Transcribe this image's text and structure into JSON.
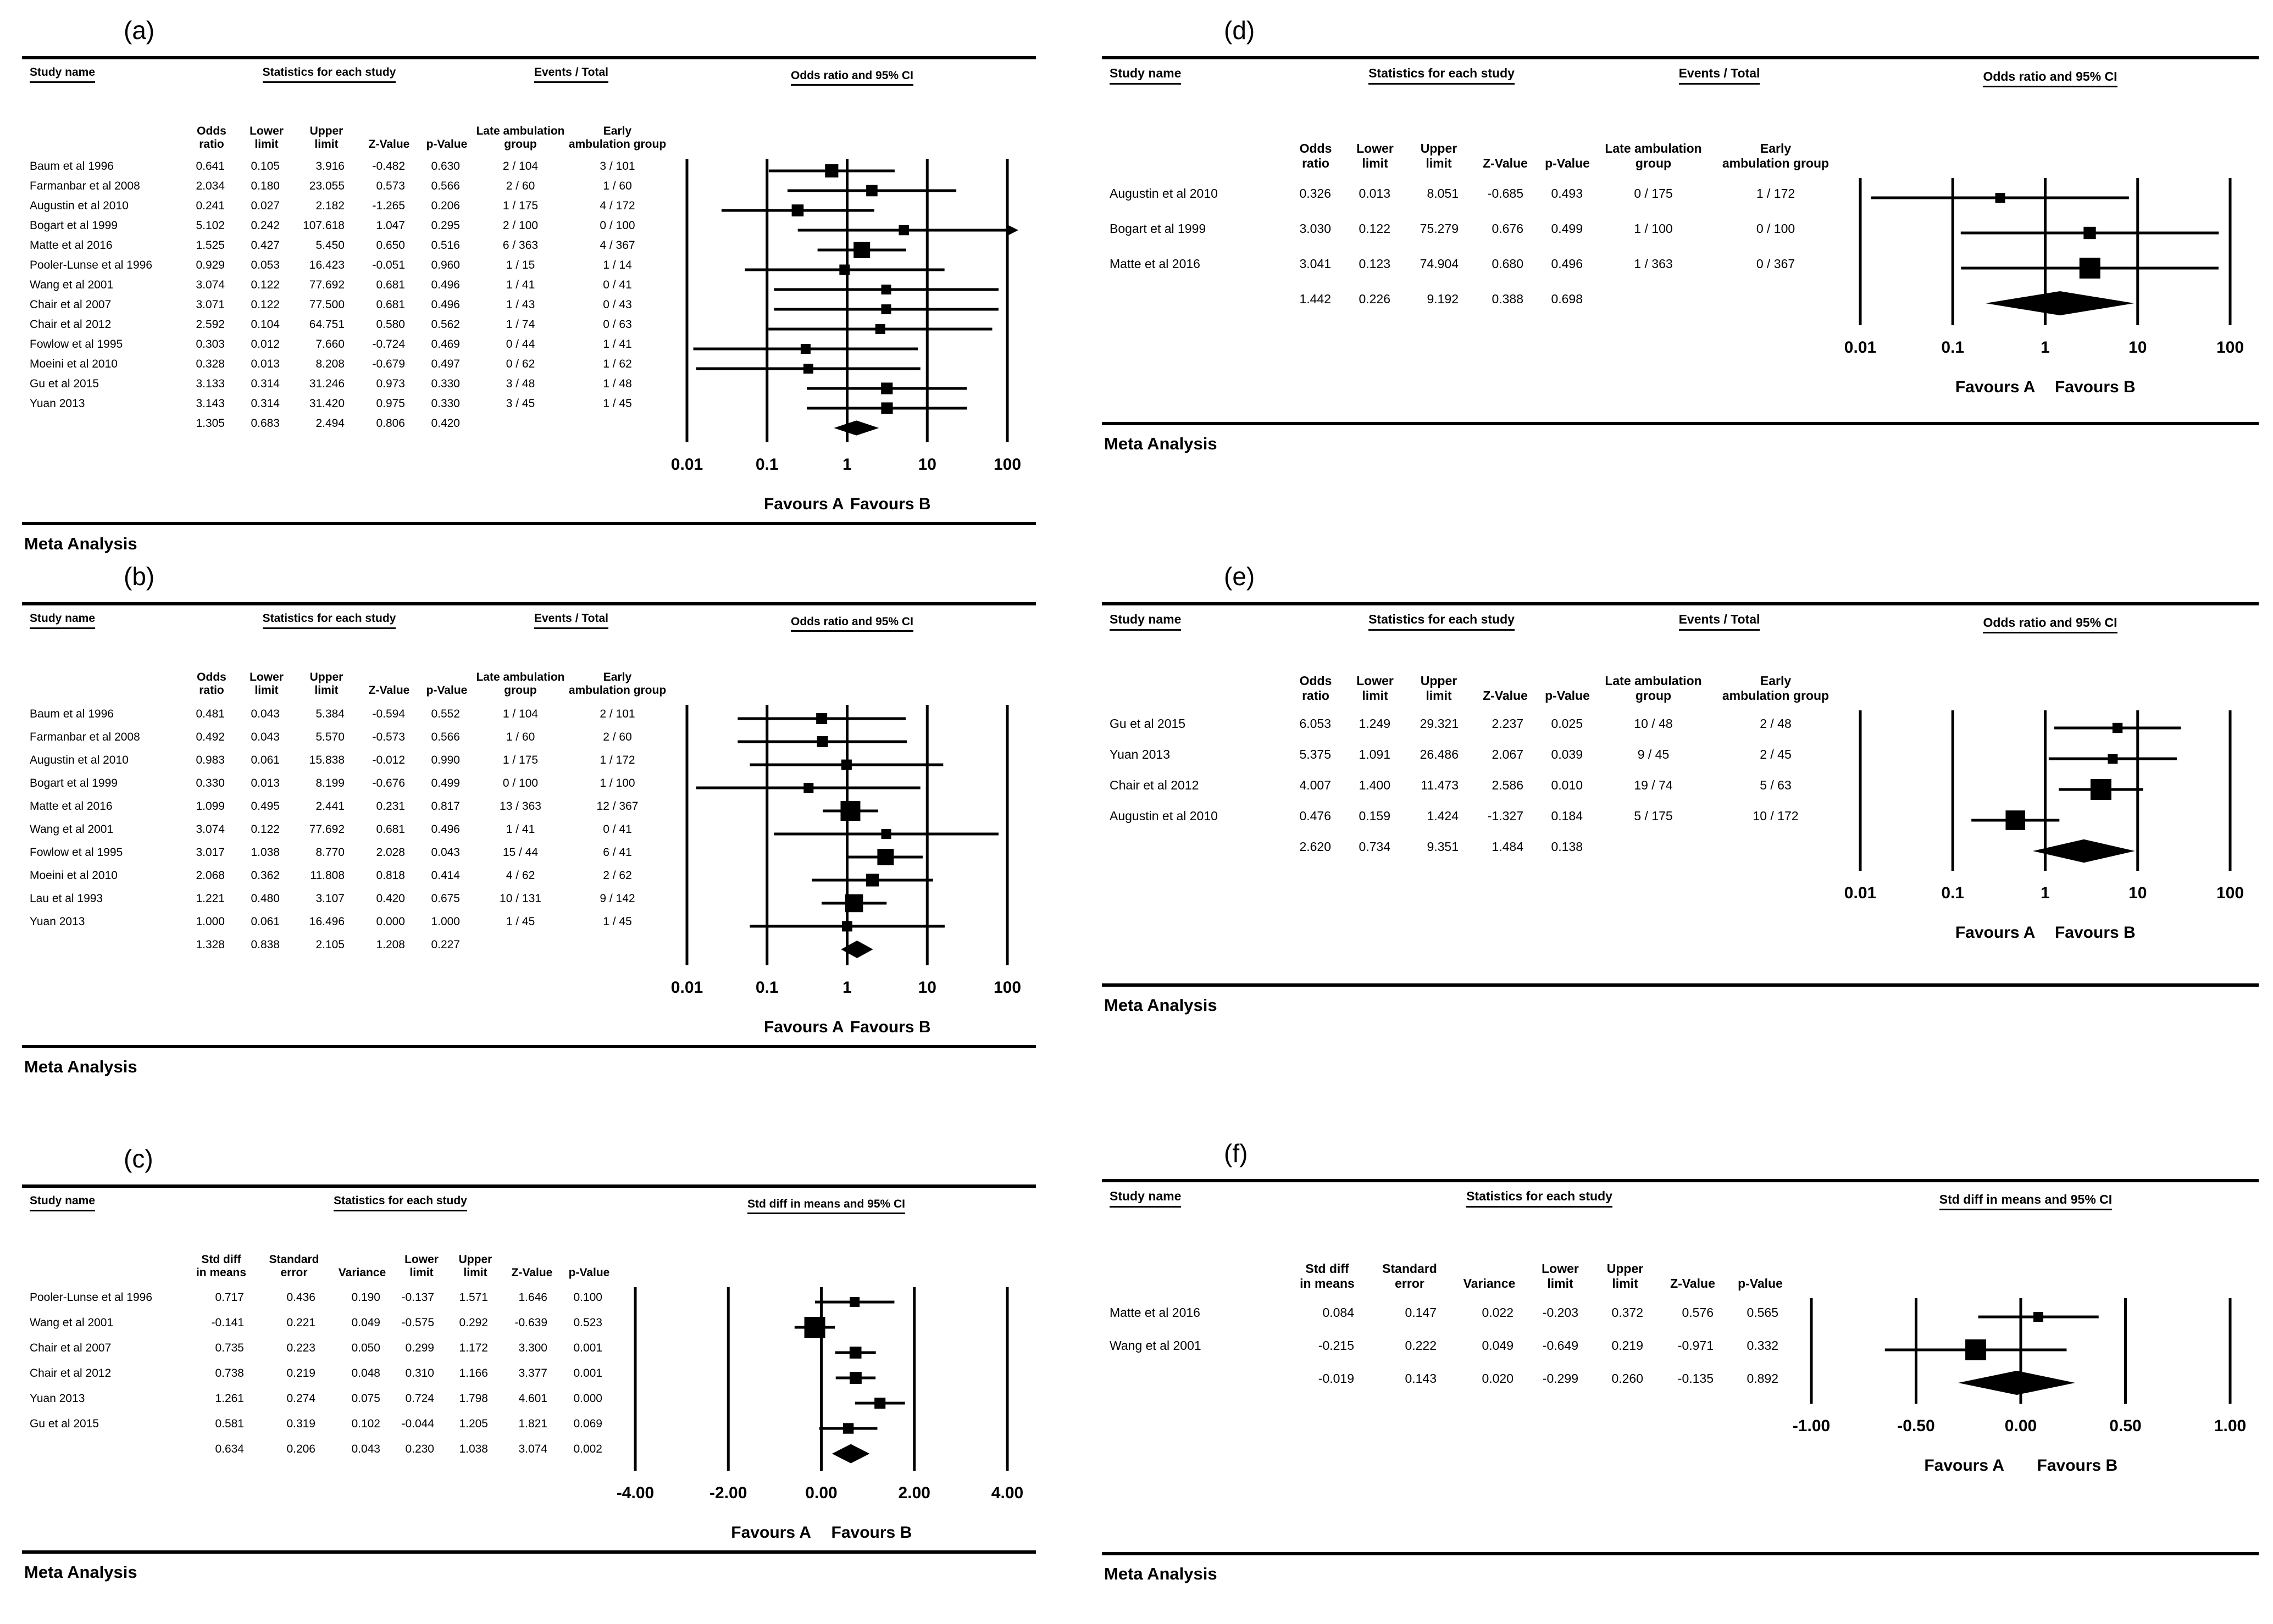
{
  "figure": {
    "favours_a": "Favours A",
    "favours_b": "Favours B",
    "meta_label": "Meta Analysis"
  },
  "chart_data": [
    {
      "type": "forest-or",
      "label": "(a)",
      "plot_title": "Odds ratio and 95% CI",
      "meta_label": "Meta Analysis",
      "headers": {
        "study": "Study name",
        "stats": "Statistics for each study",
        "events": "Events / Total"
      },
      "sub_headers": [
        "",
        "Odds\nratio",
        "Lower\nlimit",
        "Upper\nlimit",
        "Z-Value",
        "p-Value",
        "Late ambulation\ngroup",
        "Early\nambulation group"
      ],
      "axis": {
        "scale": "log",
        "min": 0.01,
        "max": 100,
        "ticks": [
          0.01,
          0.1,
          1,
          10,
          100
        ],
        "labels": [
          "0.01",
          "0.1",
          "1",
          "10",
          "100"
        ]
      },
      "rows": [
        {
          "name": "Baum et al 1996",
          "cells": [
            "0.641",
            "0.105",
            "3.916",
            "-0.482",
            "0.630"
          ],
          "events": [
            "2 / 104",
            "3 / 101"
          ]
        },
        {
          "name": "Farmanbar et al 2008",
          "cells": [
            "2.034",
            "0.180",
            "23.055",
            "0.573",
            "0.566"
          ],
          "events": [
            "2 / 60",
            "1 / 60"
          ]
        },
        {
          "name": "Augustin et al 2010",
          "cells": [
            "0.241",
            "0.027",
            "2.182",
            "-1.265",
            "0.206"
          ],
          "events": [
            "1 / 175",
            "4 / 172"
          ]
        },
        {
          "name": "Bogart et al 1999",
          "cells": [
            "5.102",
            "0.242",
            "107.618",
            "1.047",
            "0.295"
          ],
          "events": [
            "2 / 100",
            "0 / 100"
          ]
        },
        {
          "name": "Matte et al 2016",
          "cells": [
            "1.525",
            "0.427",
            "5.450",
            "0.650",
            "0.516"
          ],
          "events": [
            "6 / 363",
            "4 / 367"
          ]
        },
        {
          "name": "Pooler-Lunse et al 1996",
          "cells": [
            "0.929",
            "0.053",
            "16.423",
            "-0.051",
            "0.960"
          ],
          "events": [
            "1 / 15",
            "1 / 14"
          ]
        },
        {
          "name": "Wang et al 2001",
          "cells": [
            "3.074",
            "0.122",
            "77.692",
            "0.681",
            "0.496"
          ],
          "events": [
            "1 / 41",
            "0 / 41"
          ]
        },
        {
          "name": "Chair et al 2007",
          "cells": [
            "3.071",
            "0.122",
            "77.500",
            "0.681",
            "0.496"
          ],
          "events": [
            "1 / 43",
            "0 / 43"
          ]
        },
        {
          "name": "Chair et al 2012",
          "cells": [
            "2.592",
            "0.104",
            "64.751",
            "0.580",
            "0.562"
          ],
          "events": [
            "1 / 74",
            "0 / 63"
          ]
        },
        {
          "name": "Fowlow et al 1995",
          "cells": [
            "0.303",
            "0.012",
            "7.660",
            "-0.724",
            "0.469"
          ],
          "events": [
            "0 / 44",
            "1 / 41"
          ]
        },
        {
          "name": "Moeini et al 2010",
          "cells": [
            "0.328",
            "0.013",
            "8.208",
            "-0.679",
            "0.497"
          ],
          "events": [
            "0 / 62",
            "1 / 62"
          ]
        },
        {
          "name": "Gu et al 2015",
          "cells": [
            "3.133",
            "0.314",
            "31.246",
            "0.973",
            "0.330"
          ],
          "events": [
            "3 / 48",
            "1 / 48"
          ]
        },
        {
          "name": "Yuan 2013",
          "cells": [
            "3.143",
            "0.314",
            "31.420",
            "0.975",
            "0.330"
          ],
          "events": [
            "3 / 45",
            "1 / 45"
          ]
        }
      ],
      "overall": {
        "cells": [
          "1.305",
          "0.683",
          "2.494",
          "0.806",
          "0.420"
        ]
      }
    },
    {
      "type": "forest-or",
      "label": "(b)",
      "plot_title": "Odds ratio and 95% CI",
      "meta_label": "Meta Analysis",
      "headers": {
        "study": "Study name",
        "stats": "Statistics for each study",
        "events": "Events / Total"
      },
      "sub_headers": [
        "",
        "Odds\nratio",
        "Lower\nlimit",
        "Upper\nlimit",
        "Z-Value",
        "p-Value",
        "Late ambulation\ngroup",
        "Early\nambulation group"
      ],
      "axis": {
        "scale": "log",
        "min": 0.01,
        "max": 100,
        "ticks": [
          0.01,
          0.1,
          1,
          10,
          100
        ],
        "labels": [
          "0.01",
          "0.1",
          "1",
          "10",
          "100"
        ]
      },
      "rows": [
        {
          "name": "Baum et al 1996",
          "cells": [
            "0.481",
            "0.043",
            "5.384",
            "-0.594",
            "0.552"
          ],
          "events": [
            "1 / 104",
            "2 / 101"
          ]
        },
        {
          "name": "Farmanbar et al 2008",
          "cells": [
            "0.492",
            "0.043",
            "5.570",
            "-0.573",
            "0.566"
          ],
          "events": [
            "1 / 60",
            "2 / 60"
          ]
        },
        {
          "name": "Augustin et al 2010",
          "cells": [
            "0.983",
            "0.061",
            "15.838",
            "-0.012",
            "0.990"
          ],
          "events": [
            "1 / 175",
            "1 / 172"
          ]
        },
        {
          "name": "Bogart et al 1999",
          "cells": [
            "0.330",
            "0.013",
            "8.199",
            "-0.676",
            "0.499"
          ],
          "events": [
            "0 / 100",
            "1 / 100"
          ]
        },
        {
          "name": "Matte et al 2016",
          "cells": [
            "1.099",
            "0.495",
            "2.441",
            "0.231",
            "0.817"
          ],
          "events": [
            "13 / 363",
            "12 / 367"
          ]
        },
        {
          "name": "Wang et al 2001",
          "cells": [
            "3.074",
            "0.122",
            "77.692",
            "0.681",
            "0.496"
          ],
          "events": [
            "1 / 41",
            "0 / 41"
          ]
        },
        {
          "name": "Fowlow et al 1995",
          "cells": [
            "3.017",
            "1.038",
            "8.770",
            "2.028",
            "0.043"
          ],
          "events": [
            "15 / 44",
            "6 / 41"
          ]
        },
        {
          "name": "Moeini et al 2010",
          "cells": [
            "2.068",
            "0.362",
            "11.808",
            "0.818",
            "0.414"
          ],
          "events": [
            "4 / 62",
            "2 / 62"
          ]
        },
        {
          "name": "Lau et al 1993",
          "cells": [
            "1.221",
            "0.480",
            "3.107",
            "0.420",
            "0.675"
          ],
          "events": [
            "10 / 131",
            "9 / 142"
          ]
        },
        {
          "name": "Yuan 2013",
          "cells": [
            "1.000",
            "0.061",
            "16.496",
            "0.000",
            "1.000"
          ],
          "events": [
            "1 / 45",
            "1 / 45"
          ]
        }
      ],
      "overall": {
        "cells": [
          "1.328",
          "0.838",
          "2.105",
          "1.208",
          "0.227"
        ]
      }
    },
    {
      "type": "forest-sd",
      "label": "(c)",
      "plot_title": "Std diff in means and 95% CI",
      "meta_label": "Meta Analysis",
      "headers": {
        "study": "Study name",
        "stats": "Statistics for each study"
      },
      "sub_headers": [
        "",
        "Std diff\nin means",
        "Standard\nerror",
        "Variance",
        "Lower\nlimit",
        "Upper\nlimit",
        "Z-Value",
        "p-Value"
      ],
      "axis": {
        "scale": "linear",
        "min": -4,
        "max": 4,
        "ticks": [
          -4,
          -2,
          0,
          2,
          4
        ],
        "labels": [
          "-4.00",
          "-2.00",
          "0.00",
          "2.00",
          "4.00"
        ]
      },
      "rows": [
        {
          "name": "Pooler-Lunse et al 1996",
          "cells": [
            "0.717",
            "0.436",
            "0.190",
            "-0.137",
            "1.571",
            "1.646",
            "0.100"
          ]
        },
        {
          "name": "Wang et al 2001",
          "cells": [
            "-0.141",
            "0.221",
            "0.049",
            "-0.575",
            "0.292",
            "-0.639",
            "0.523"
          ]
        },
        {
          "name": "Chair et al 2007",
          "cells": [
            "0.735",
            "0.223",
            "0.050",
            "0.299",
            "1.172",
            "3.300",
            "0.001"
          ]
        },
        {
          "name": "Chair et al 2012",
          "cells": [
            "0.738",
            "0.219",
            "0.048",
            "0.310",
            "1.166",
            "3.377",
            "0.001"
          ]
        },
        {
          "name": "Yuan 2013",
          "cells": [
            "1.261",
            "0.274",
            "0.075",
            "0.724",
            "1.798",
            "4.601",
            "0.000"
          ]
        },
        {
          "name": "Gu et al 2015",
          "cells": [
            "0.581",
            "0.319",
            "0.102",
            "-0.044",
            "1.205",
            "1.821",
            "0.069"
          ]
        }
      ],
      "overall": {
        "cells": [
          "0.634",
          "0.206",
          "0.043",
          "0.230",
          "1.038",
          "3.074",
          "0.002"
        ]
      }
    },
    {
      "type": "forest-or",
      "label": "(d)",
      "plot_title": "Odds ratio and 95% CI",
      "meta_label": "Meta Analysis",
      "headers": {
        "study": "Study name",
        "stats": "Statistics for each study",
        "events": "Events / Total"
      },
      "sub_headers": [
        "",
        "Odds\nratio",
        "Lower\nlimit",
        "Upper\nlimit",
        "Z-Value",
        "p-Value",
        "Late ambulation\ngroup",
        "Early\nambulation group"
      ],
      "axis": {
        "scale": "log",
        "min": 0.01,
        "max": 100,
        "ticks": [
          0.01,
          0.1,
          1,
          10,
          100
        ],
        "labels": [
          "0.01",
          "0.1",
          "1",
          "10",
          "100"
        ]
      },
      "rows": [
        {
          "name": "Augustin et al 2010",
          "cells": [
            "0.326",
            "0.013",
            "8.051",
            "-0.685",
            "0.493"
          ],
          "events": [
            "0 / 175",
            "1 / 172"
          ]
        },
        {
          "name": "Bogart et al 1999",
          "cells": [
            "3.030",
            "0.122",
            "75.279",
            "0.676",
            "0.499"
          ],
          "events": [
            "1 / 100",
            "0 / 100"
          ]
        },
        {
          "name": "Matte et al 2016",
          "cells": [
            "3.041",
            "0.123",
            "74.904",
            "0.680",
            "0.496"
          ],
          "events": [
            "1 / 363",
            "0 / 367"
          ]
        }
      ],
      "overall": {
        "cells": [
          "1.442",
          "0.226",
          "9.192",
          "0.388",
          "0.698"
        ]
      }
    },
    {
      "type": "forest-or",
      "label": "(e)",
      "plot_title": "Odds ratio and 95% CI",
      "meta_label": "Meta Analysis",
      "headers": {
        "study": "Study name",
        "stats": "Statistics for each study",
        "events": "Events / Total"
      },
      "sub_headers": [
        "",
        "Odds\nratio",
        "Lower\nlimit",
        "Upper\nlimit",
        "Z-Value",
        "p-Value",
        "Late ambulation\ngroup",
        "Early\nambulation group"
      ],
      "axis": {
        "scale": "log",
        "min": 0.01,
        "max": 100,
        "ticks": [
          0.01,
          0.1,
          1,
          10,
          100
        ],
        "labels": [
          "0.01",
          "0.1",
          "1",
          "10",
          "100"
        ]
      },
      "rows": [
        {
          "name": "Gu et al 2015",
          "cells": [
            "6.053",
            "1.249",
            "29.321",
            "2.237",
            "0.025"
          ],
          "events": [
            "10 / 48",
            "2 / 48"
          ]
        },
        {
          "name": "Yuan 2013",
          "cells": [
            "5.375",
            "1.091",
            "26.486",
            "2.067",
            "0.039"
          ],
          "events": [
            "9 / 45",
            "2 / 45"
          ]
        },
        {
          "name": "Chair et al 2012",
          "cells": [
            "4.007",
            "1.400",
            "11.473",
            "2.586",
            "0.010"
          ],
          "events": [
            "19 / 74",
            "5 / 63"
          ]
        },
        {
          "name": "Augustin et al 2010",
          "cells": [
            "0.476",
            "0.159",
            "1.424",
            "-1.327",
            "0.184"
          ],
          "events": [
            "5 / 175",
            "10 / 172"
          ]
        }
      ],
      "overall": {
        "cells": [
          "2.620",
          "0.734",
          "9.351",
          "1.484",
          "0.138"
        ]
      }
    },
    {
      "type": "forest-sd",
      "label": "(f)",
      "plot_title": "Std diff in means and 95% CI",
      "meta_label": "Meta Analysis",
      "headers": {
        "study": "Study name",
        "stats": "Statistics for each study"
      },
      "sub_headers": [
        "",
        "Std diff\nin means",
        "Standard\nerror",
        "Variance",
        "Lower\nlimit",
        "Upper\nlimit",
        "Z-Value",
        "p-Value"
      ],
      "axis": {
        "scale": "linear",
        "min": -1,
        "max": 1,
        "ticks": [
          -1,
          -0.5,
          0,
          0.5,
          1
        ],
        "labels": [
          "-1.00",
          "-0.50",
          "0.00",
          "0.50",
          "1.00"
        ]
      },
      "rows": [
        {
          "name": "Matte et al 2016",
          "cells": [
            "0.084",
            "0.147",
            "0.022",
            "-0.203",
            "0.372",
            "0.576",
            "0.565"
          ]
        },
        {
          "name": "Wang et al 2001",
          "cells": [
            "-0.215",
            "0.222",
            "0.049",
            "-0.649",
            "0.219",
            "-0.971",
            "0.332"
          ]
        }
      ],
      "overall": {
        "cells": [
          "-0.019",
          "0.143",
          "0.020",
          "-0.299",
          "0.260",
          "-0.135",
          "0.892"
        ]
      }
    }
  ]
}
